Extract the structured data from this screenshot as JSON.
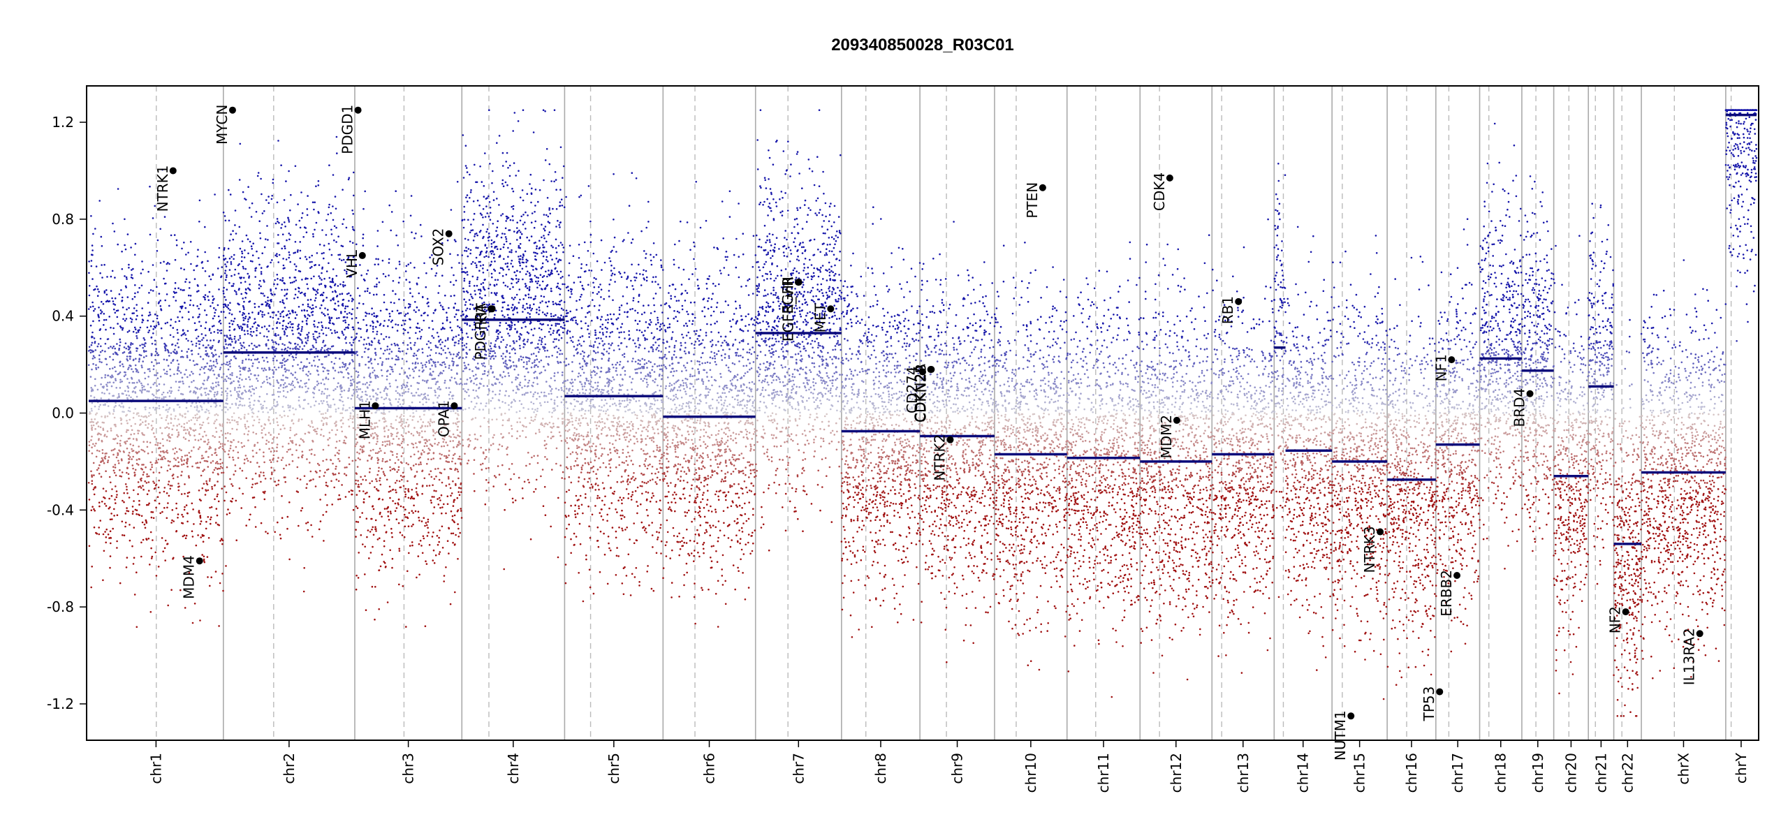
{
  "chart_data": {
    "type": "scatter",
    "title": "209340850028_R03C01",
    "xlabel": "",
    "ylabel": "",
    "ylim": [
      -1.35,
      1.35
    ],
    "yticks": [
      -1.2,
      -0.8,
      -0.4,
      0.0,
      0.4,
      0.8,
      1.2
    ],
    "grid": false,
    "colors": {
      "gain": "#1a1aa8",
      "loss": "#a01010",
      "segment": "#0a0a7a",
      "boundary": "#aaaaaa",
      "centromere": "#bbbbbb",
      "marker": "#000000"
    },
    "chromosomes": [
      {
        "name": "chr1",
        "start": 0,
        "end": 249,
        "centromere": 125
      },
      {
        "name": "chr2",
        "start": 249,
        "end": 492,
        "centromere": 342
      },
      {
        "name": "chr3",
        "start": 492,
        "end": 690,
        "centromere": 583
      },
      {
        "name": "chr4",
        "start": 690,
        "end": 880,
        "centromere": 740
      },
      {
        "name": "chr5",
        "start": 880,
        "end": 1062,
        "centromere": 928
      },
      {
        "name": "chr6",
        "start": 1062,
        "end": 1233,
        "centromere": 1121
      },
      {
        "name": "chr7",
        "start": 1233,
        "end": 1392,
        "centromere": 1293
      },
      {
        "name": "chr8",
        "start": 1392,
        "end": 1537,
        "centromere": 1437
      },
      {
        "name": "chr9",
        "start": 1537,
        "end": 1675,
        "centromere": 1586
      },
      {
        "name": "chr10",
        "start": 1675,
        "end": 1809,
        "centromere": 1715
      },
      {
        "name": "chr11",
        "start": 1809,
        "end": 1944,
        "centromere": 1862
      },
      {
        "name": "chr12",
        "start": 1944,
        "end": 2077,
        "centromere": 1980
      },
      {
        "name": "chr13",
        "start": 2077,
        "end": 2192,
        "centromere": 2095
      },
      {
        "name": "chr14",
        "start": 2192,
        "end": 2299,
        "centromere": 2209
      },
      {
        "name": "chr15",
        "start": 2299,
        "end": 2401,
        "centromere": 2318
      },
      {
        "name": "chr16",
        "start": 2401,
        "end": 2491,
        "centromere": 2437
      },
      {
        "name": "chr17",
        "start": 2491,
        "end": 2572,
        "centromere": 2515
      },
      {
        "name": "chr18",
        "start": 2572,
        "end": 2650,
        "centromere": 2589
      },
      {
        "name": "chr19",
        "start": 2650,
        "end": 2709,
        "centromere": 2676
      },
      {
        "name": "chr20",
        "start": 2709,
        "end": 2773,
        "centromere": 2737
      },
      {
        "name": "chr21",
        "start": 2773,
        "end": 2820,
        "centromere": 2786
      },
      {
        "name": "chr22",
        "start": 2820,
        "end": 2871,
        "centromere": 2835
      },
      {
        "name": "chrX",
        "start": 2871,
        "end": 3027,
        "centromere": 2932
      },
      {
        "name": "chrY",
        "start": 3027,
        "end": 3084,
        "centromere": 3037
      }
    ],
    "segments": [
      {
        "chrom": "chr1",
        "start": 0,
        "end": 249,
        "value": 0.05
      },
      {
        "chrom": "chr2",
        "start": 249,
        "end": 492,
        "value": 0.25
      },
      {
        "chrom": "chr3",
        "start": 492,
        "end": 690,
        "value": 0.02
      },
      {
        "chrom": "chr4",
        "start": 690,
        "end": 880,
        "value": 0.385
      },
      {
        "chrom": "chr5",
        "start": 880,
        "end": 1062,
        "value": 0.07
      },
      {
        "chrom": "chr6",
        "start": 1062,
        "end": 1233,
        "value": -0.015
      },
      {
        "chrom": "chr7",
        "start": 1233,
        "end": 1392,
        "value": 0.33
      },
      {
        "chrom": "chr8",
        "start": 1392,
        "end": 1537,
        "value": -0.075
      },
      {
        "chrom": "chr9",
        "start": 1537,
        "end": 1675,
        "value": -0.095
      },
      {
        "chrom": "chr10",
        "start": 1675,
        "end": 1809,
        "value": -0.17
      },
      {
        "chrom": "chr11",
        "start": 1809,
        "end": 1944,
        "value": -0.185
      },
      {
        "chrom": "chr12",
        "start": 1944,
        "end": 2077,
        "value": -0.2
      },
      {
        "chrom": "chr13",
        "start": 2077,
        "end": 2192,
        "value": -0.17
      },
      {
        "chrom": "chr14",
        "start": 2192,
        "end": 2213,
        "value": 0.27
      },
      {
        "chrom": "chr14",
        "start": 2213,
        "end": 2299,
        "value": -0.155
      },
      {
        "chrom": "chr15",
        "start": 2299,
        "end": 2401,
        "value": -0.2
      },
      {
        "chrom": "chr16",
        "start": 2401,
        "end": 2491,
        "value": -0.275
      },
      {
        "chrom": "chr17",
        "start": 2491,
        "end": 2572,
        "value": -0.13
      },
      {
        "chrom": "chr18",
        "start": 2572,
        "end": 2650,
        "value": 0.225
      },
      {
        "chrom": "chr19",
        "start": 2650,
        "end": 2709,
        "value": 0.175
      },
      {
        "chrom": "chr20",
        "start": 2709,
        "end": 2773,
        "value": -0.26
      },
      {
        "chrom": "chr21",
        "start": 2773,
        "end": 2820,
        "value": 0.11
      },
      {
        "chrom": "chr22",
        "start": 2820,
        "end": 2835,
        "value": -0.54
      },
      {
        "chrom": "chr22",
        "start": 2835,
        "end": 2871,
        "value": -0.54
      },
      {
        "chrom": "chrX",
        "start": 2871,
        "end": 3027,
        "value": -0.245
      },
      {
        "chrom": "chrY",
        "start": 3027,
        "end": 3084,
        "value": 1.23
      }
    ],
    "genes": [
      {
        "name": "NTRK1",
        "x": 156,
        "value": 1.0
      },
      {
        "name": "MDM4",
        "x": 205,
        "value": -0.61
      },
      {
        "name": "MYCN",
        "x": 266,
        "value": 1.25
      },
      {
        "name": "PDGD1",
        "x": 498,
        "value": 1.25
      },
      {
        "name": "VHL",
        "x": 506,
        "value": 0.65
      },
      {
        "name": "MLH1",
        "x": 530,
        "value": 0.03
      },
      {
        "name": "SOX2",
        "x": 666,
        "value": 0.74
      },
      {
        "name": "OPA1",
        "x": 676,
        "value": 0.03
      },
      {
        "name": "PDGFRA",
        "x": 744,
        "value": 0.43
      },
      {
        "name": "KIT",
        "x": 746,
        "value": 0.43
      },
      {
        "name": "EGFR",
        "x": 1312,
        "value": 0.54
      },
      {
        "name": "EGFR_vIII",
        "x": 1313,
        "value": 0.54
      },
      {
        "name": "MET",
        "x": 1372,
        "value": 0.43
      },
      {
        "name": "CD274",
        "x": 1542,
        "value": 0.17
      },
      {
        "name": "CDKN2A",
        "x": 1557,
        "value": 0.18
      },
      {
        "name": "CDKN2B",
        "x": 1558,
        "value": 0.18
      },
      {
        "name": "NTRK2",
        "x": 1593,
        "value": -0.11
      },
      {
        "name": "PTEN",
        "x": 1764,
        "value": 0.93
      },
      {
        "name": "CDK4",
        "x": 1999,
        "value": 0.97
      },
      {
        "name": "MDM2",
        "x": 2012,
        "value": -0.03
      },
      {
        "name": "RB1",
        "x": 2126,
        "value": 0.46
      },
      {
        "name": "NUTM1",
        "x": 2334,
        "value": -1.25
      },
      {
        "name": "NTRK3",
        "x": 2388,
        "value": -0.49
      },
      {
        "name": "TP53",
        "x": 2498,
        "value": -1.15
      },
      {
        "name": "ERBB2",
        "x": 2530,
        "value": -0.67
      },
      {
        "name": "NF1",
        "x": 2520,
        "value": 0.22
      },
      {
        "name": "BRD4",
        "x": 2665,
        "value": 0.08
      },
      {
        "name": "NF2",
        "x": 2842,
        "value": -0.82
      },
      {
        "name": "IL13RA2",
        "x": 2979,
        "value": -0.91
      }
    ]
  }
}
